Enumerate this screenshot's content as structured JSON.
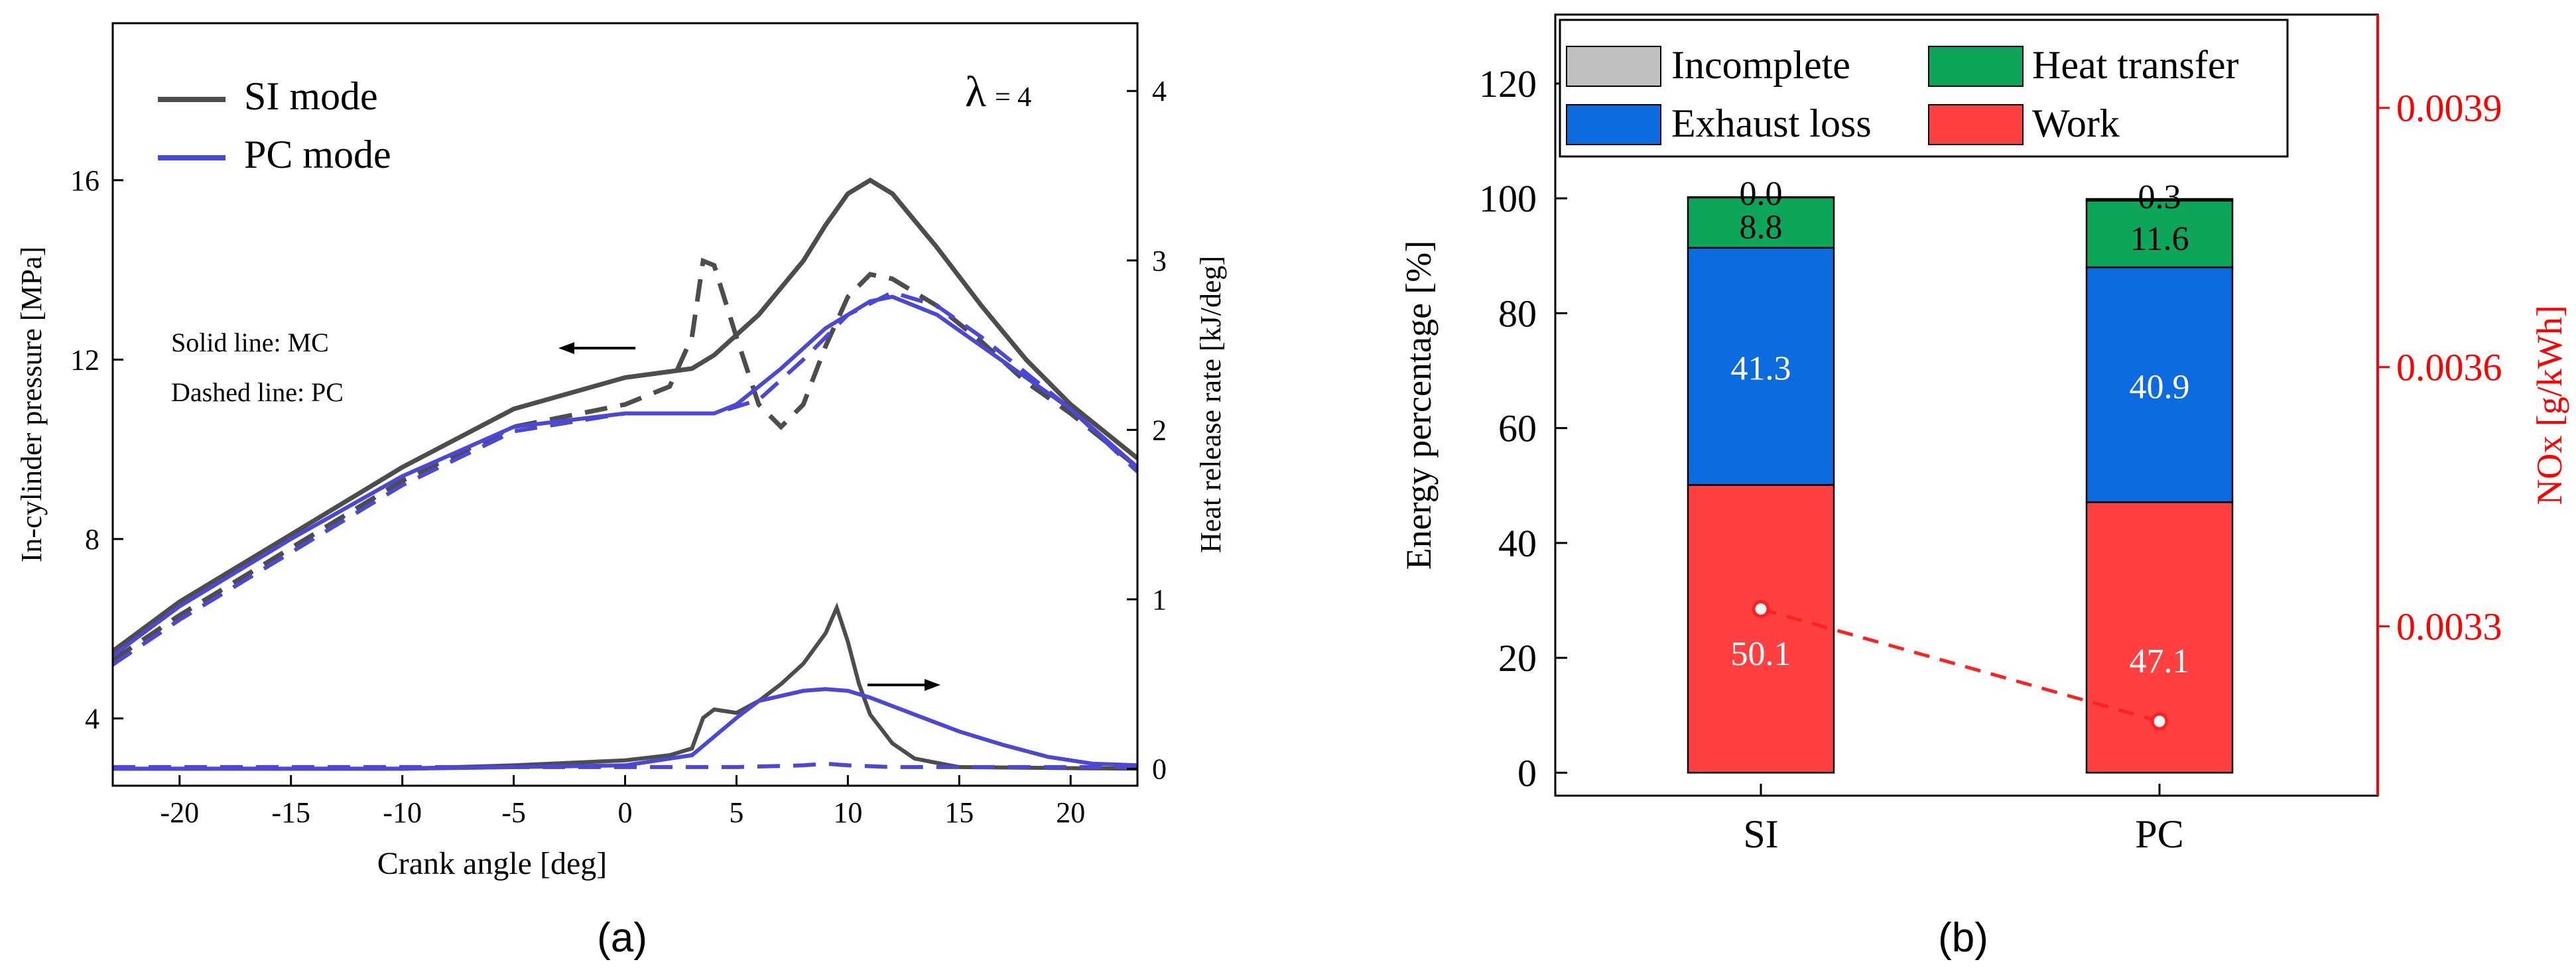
{
  "chart_data": [
    {
      "panel": "(a)",
      "type": "line",
      "xlabel": "Crank angle [deg]",
      "ylabel": "In-cylinder pressure [MPa]",
      "y2label": "Heat release rate [kJ/deg]",
      "xlim": [
        -23,
        23
      ],
      "ylim": [
        2.5,
        19.5
      ],
      "y2lim": [
        -0.1,
        4.4
      ],
      "xticks": [
        "-20",
        "-15",
        "-10",
        "-5",
        "0",
        "5",
        "10",
        "15",
        "20"
      ],
      "yticks": [
        "4",
        "8",
        "12",
        "16"
      ],
      "y2ticks": [
        "0",
        "1",
        "2",
        "3",
        "4"
      ],
      "legend": [
        "SI mode",
        "PC mode"
      ],
      "lambda_label": "λ",
      "lambda_value": "= 4",
      "annotation_solid": "Solid line: MC",
      "annotation_dashed": "Dashed line: PC",
      "colors": {
        "si": "#4d4d4d",
        "pc": "#4a48d4"
      },
      "series": [
        {
          "name": "SI mode pressure (solid)",
          "axis": "left",
          "style": "solid",
          "points": [
            [
              -23,
              5.5
            ],
            [
              -20,
              6.6
            ],
            [
              -15,
              8.1
            ],
            [
              -10,
              9.6
            ],
            [
              -5,
              10.9
            ],
            [
              0,
              11.6
            ],
            [
              3,
              11.8
            ],
            [
              4,
              12.1
            ],
            [
              6,
              13.0
            ],
            [
              8,
              14.2
            ],
            [
              9,
              15.0
            ],
            [
              10,
              15.7
            ],
            [
              11,
              16.0
            ],
            [
              12,
              15.7
            ],
            [
              14,
              14.5
            ],
            [
              16,
              13.2
            ],
            [
              18,
              12.0
            ],
            [
              20,
              11.0
            ],
            [
              23,
              9.8
            ]
          ]
        },
        {
          "name": "SI mode pressure (dashed)",
          "axis": "left",
          "style": "dashed",
          "points": [
            [
              -23,
              5.3
            ],
            [
              -20,
              6.3
            ],
            [
              -15,
              7.8
            ],
            [
              -10,
              9.3
            ],
            [
              -5,
              10.5
            ],
            [
              0,
              11.0
            ],
            [
              2,
              11.4
            ],
            [
              3,
              12.5
            ],
            [
              3.5,
              14.2
            ],
            [
              4,
              14.1
            ],
            [
              5,
              12.5
            ],
            [
              6,
              11.0
            ],
            [
              7,
              10.5
            ],
            [
              8,
              11.0
            ],
            [
              9,
              12.3
            ],
            [
              10,
              13.4
            ],
            [
              11,
              13.9
            ],
            [
              12,
              13.8
            ],
            [
              14,
              13.2
            ],
            [
              16,
              12.4
            ],
            [
              18,
              11.5
            ],
            [
              20,
              10.8
            ],
            [
              23,
              9.6
            ]
          ]
        },
        {
          "name": "PC mode pressure (solid)",
          "axis": "left",
          "style": "solid",
          "points": [
            [
              -23,
              5.4
            ],
            [
              -20,
              6.5
            ],
            [
              -15,
              8.0
            ],
            [
              -10,
              9.4
            ],
            [
              -5,
              10.5
            ],
            [
              0,
              10.8
            ],
            [
              2,
              10.8
            ],
            [
              4,
              10.8
            ],
            [
              5,
              11.0
            ],
            [
              7,
              11.8
            ],
            [
              9,
              12.7
            ],
            [
              11,
              13.3
            ],
            [
              12,
              13.4
            ],
            [
              14,
              13.0
            ],
            [
              16,
              12.3
            ],
            [
              18,
              11.6
            ],
            [
              20,
              10.9
            ],
            [
              23,
              9.6
            ]
          ]
        },
        {
          "name": "PC mode pressure (dashed)",
          "axis": "left",
          "style": "dashed",
          "points": [
            [
              -23,
              5.2
            ],
            [
              -20,
              6.2
            ],
            [
              -15,
              7.7
            ],
            [
              -10,
              9.2
            ],
            [
              -5,
              10.4
            ],
            [
              0,
              10.8
            ],
            [
              2,
              10.8
            ],
            [
              4,
              10.8
            ],
            [
              6,
              11.1
            ],
            [
              8,
              12.0
            ],
            [
              10,
              13.0
            ],
            [
              12,
              13.5
            ],
            [
              14,
              13.2
            ],
            [
              16,
              12.5
            ],
            [
              18,
              11.7
            ],
            [
              20,
              10.9
            ],
            [
              23,
              9.5
            ]
          ]
        },
        {
          "name": "SI mode heat release rate",
          "axis": "right",
          "style": "solid",
          "points": [
            [
              -23,
              0.0
            ],
            [
              -10,
              0.0
            ],
            [
              -5,
              0.02
            ],
            [
              0,
              0.05
            ],
            [
              2,
              0.08
            ],
            [
              3,
              0.12
            ],
            [
              3.5,
              0.3
            ],
            [
              4,
              0.35
            ],
            [
              5,
              0.33
            ],
            [
              6,
              0.4
            ],
            [
              7,
              0.5
            ],
            [
              8,
              0.62
            ],
            [
              9,
              0.8
            ],
            [
              9.5,
              0.95
            ],
            [
              10,
              0.75
            ],
            [
              10.5,
              0.5
            ],
            [
              11,
              0.32
            ],
            [
              12,
              0.15
            ],
            [
              13,
              0.06
            ],
            [
              15,
              0.01
            ],
            [
              23,
              0.0
            ]
          ]
        },
        {
          "name": "PC mode heat release rate",
          "axis": "right",
          "style": "solid",
          "points": [
            [
              -23,
              0.0
            ],
            [
              -10,
              0.0
            ],
            [
              -5,
              0.01
            ],
            [
              0,
              0.02
            ],
            [
              3,
              0.08
            ],
            [
              5,
              0.3
            ],
            [
              6,
              0.4
            ],
            [
              8,
              0.46
            ],
            [
              9,
              0.47
            ],
            [
              10,
              0.46
            ],
            [
              11,
              0.42
            ],
            [
              13,
              0.32
            ],
            [
              15,
              0.22
            ],
            [
              17,
              0.14
            ],
            [
              19,
              0.07
            ],
            [
              21,
              0.03
            ],
            [
              23,
              0.02
            ]
          ]
        },
        {
          "name": "PC mode heat release rate (dashed)",
          "axis": "right",
          "style": "dashed",
          "points": [
            [
              -23,
              0.01
            ],
            [
              0,
              0.01
            ],
            [
              5,
              0.01
            ],
            [
              8,
              0.02
            ],
            [
              9,
              0.03
            ],
            [
              10,
              0.02
            ],
            [
              12,
              0.01
            ],
            [
              23,
              0.01
            ]
          ]
        }
      ]
    },
    {
      "panel": "(b)",
      "type": "bar",
      "stacked": true,
      "categories": [
        "SI",
        "PC"
      ],
      "ylabel": "Energy percentage [%]",
      "y2label": "NOx [g/kWh]",
      "ylim": [
        -4,
        132
      ],
      "y2lim": [
        0.003104,
        0.004008
      ],
      "yticks": [
        "0",
        "20",
        "40",
        "60",
        "80",
        "100",
        "120"
      ],
      "y2ticks": [
        "0.0033",
        "0.0036",
        "0.0039"
      ],
      "legend_position": "top",
      "series": [
        {
          "name": "Work",
          "color": "#ff4040",
          "values": [
            50.1,
            47.1
          ],
          "labels": [
            "50.1",
            "47.1"
          ]
        },
        {
          "name": "Exhaust loss",
          "color": "#0d6be0",
          "values": [
            41.3,
            40.9
          ],
          "labels": [
            "41.3",
            "40.9"
          ]
        },
        {
          "name": "Heat transfer",
          "color": "#0ca55a",
          "values": [
            8.8,
            11.6
          ],
          "labels": [
            "8.8",
            "11.6"
          ]
        },
        {
          "name": "Incomplete",
          "color": "#c0c0c0",
          "values": [
            0.0,
            0.3
          ],
          "labels": [
            "0.0",
            "0.3"
          ]
        }
      ],
      "line_series": {
        "name": "NOx",
        "axis": "right",
        "style": "dashed",
        "color": "#ff0000",
        "values": [
          0.00332,
          0.00319
        ]
      }
    }
  ],
  "captions": {
    "a": "(a)",
    "b": "(b)"
  }
}
